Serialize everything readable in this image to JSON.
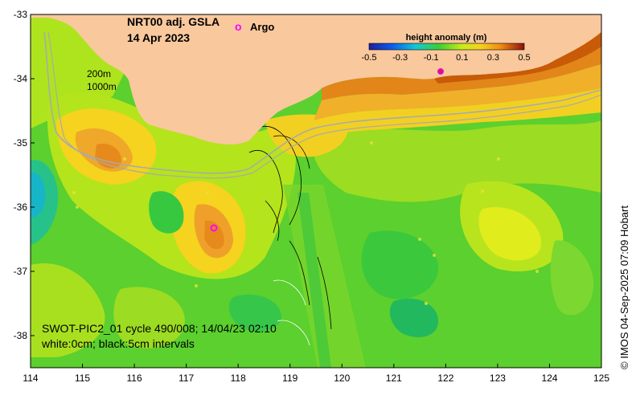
{
  "map": {
    "title_line1": "NRT00 adj. GSLA",
    "title_line2": "14 Apr 2023",
    "argo_marker": "o",
    "argo_label": "Argo",
    "depth_label_200": "200m",
    "depth_label_1000": "1000m",
    "swot_line1": "SWOT-PIC2_01 cycle 490/008; 14/04/23 02:10",
    "swot_line2": "white:0cm; black:5cm intervals",
    "credit": "© IMOS 04-Sep-2025 07:09 Hobart",
    "extent": {
      "lon_min": 114,
      "lon_max": 125,
      "lat_min": -38.5,
      "lat_max": -33
    }
  },
  "colorbar": {
    "title": "height anomaly (m)",
    "ticks": [
      "-0.5",
      "-0.3",
      "-0.1",
      "0.1",
      "0.3",
      "0.5"
    ]
  },
  "axes": {
    "y_ticks": [
      "-33",
      "-34",
      "-35",
      "-36",
      "-37",
      "-38"
    ],
    "x_ticks": [
      "114",
      "115",
      "116",
      "117",
      "118",
      "119",
      "120",
      "121",
      "122",
      "123",
      "124",
      "125"
    ]
  },
  "colors": {
    "land": "#f9c89c",
    "background_anomaly": "#5bd02e",
    "argo": "#ff00ff",
    "isobath": "#aaaaaa",
    "coast_high": "#c85a08"
  }
}
